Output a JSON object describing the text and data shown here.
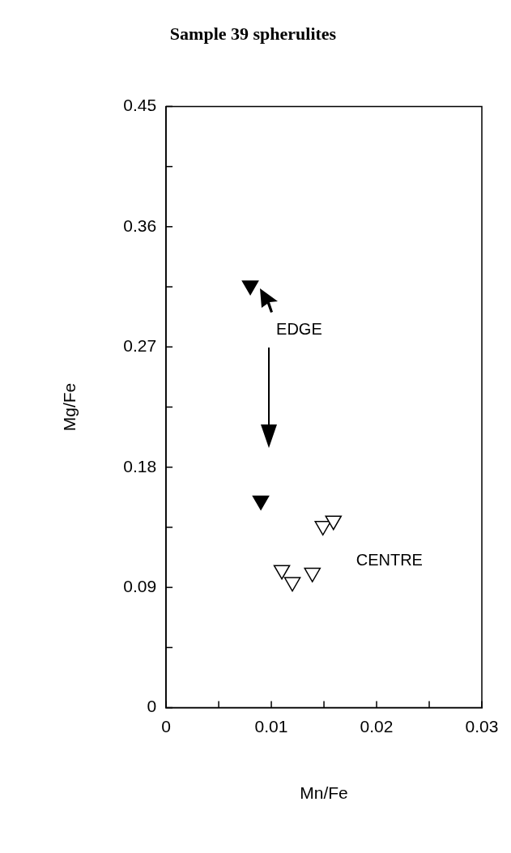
{
  "chart_data": {
    "type": "scatter",
    "title": "Sample 39 spherulites",
    "xlabel": "Mn/Fe",
    "ylabel": "Mg/Fe",
    "xlim": [
      0,
      0.03
    ],
    "ylim": [
      0,
      0.45
    ],
    "xticks": [
      0,
      {
        "value": 0.005,
        "label": null
      },
      0.01,
      {
        "value": 0.015,
        "label": null
      },
      0.02,
      {
        "value": 0.025,
        "label": null
      },
      0.03
    ],
    "yticks": [
      0,
      {
        "value": 0.045,
        "label": null
      },
      0.09,
      {
        "value": 0.135,
        "label": null
      },
      0.18,
      {
        "value": 0.225,
        "label": null
      },
      0.27,
      {
        "value": 0.315,
        "label": null
      },
      0.36,
      {
        "value": 0.405,
        "label": null
      },
      0.45
    ],
    "marker": "triangle",
    "grid": false,
    "legend": false,
    "series": [
      {
        "color": "#000000",
        "x": [
          0.008,
          0.009
        ],
        "values": [
          0.316,
          0.155
        ]
      },
      {
        "color": "#ffffff",
        "x": [
          0.0149,
          0.0159,
          0.011,
          0.012,
          0.0139
        ],
        "values": [
          0.136,
          0.14,
          0.103,
          0.094,
          0.101
        ]
      }
    ],
    "annotations": [
      "EDGE",
      "CENTRE"
    ]
  }
}
